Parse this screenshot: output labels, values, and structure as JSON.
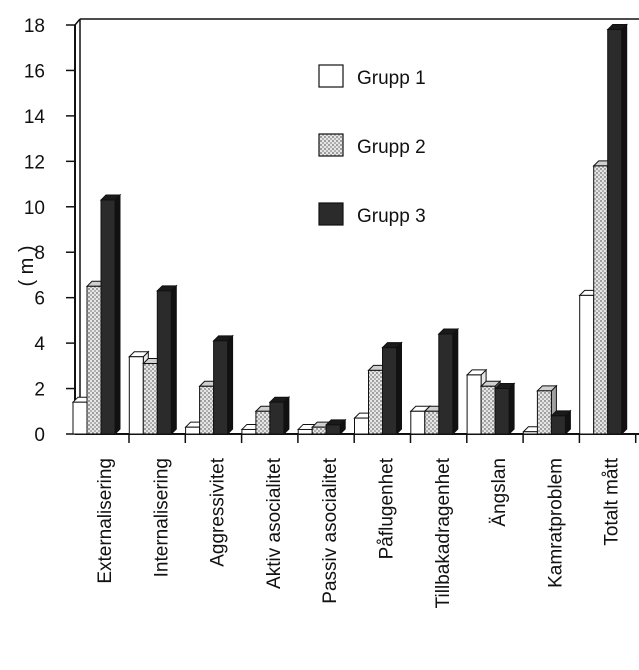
{
  "chart_data": {
    "type": "bar",
    "title": "",
    "xlabel": "",
    "ylabel": "( m )",
    "ylim": [
      0,
      18
    ],
    "yticks": [
      0,
      2,
      4,
      6,
      8,
      10,
      12,
      14,
      16,
      18
    ],
    "grid": false,
    "legend_position": "top-center",
    "categories": [
      "Externalisering",
      "Internalisering",
      "Aggressivitet",
      "Aktiv  asocialitet",
      "Passiv asocialitet",
      "Påflugenhet",
      "Tillbakadragenhet",
      "Ängslan",
      "Kamratproblem",
      "Totalt  mått"
    ],
    "series": [
      {
        "name": "Grupp 1",
        "fill": "white",
        "color": "#ffffff",
        "values": [
          1.4,
          3.4,
          0.3,
          0.2,
          0.2,
          0.7,
          1.0,
          2.6,
          0.1,
          6.1
        ]
      },
      {
        "name": "Grupp 2",
        "fill": "dotted",
        "color": "#c8c8c8",
        "values": [
          6.5,
          3.1,
          2.1,
          1.0,
          0.3,
          2.8,
          1.0,
          2.1,
          1.9,
          11.8
        ]
      },
      {
        "name": "Grupp 3",
        "fill": "solid",
        "color": "#2b2b2b",
        "values": [
          10.3,
          6.3,
          4.1,
          1.4,
          0.4,
          3.8,
          4.4,
          2.0,
          0.8,
          17.8
        ]
      }
    ]
  }
}
